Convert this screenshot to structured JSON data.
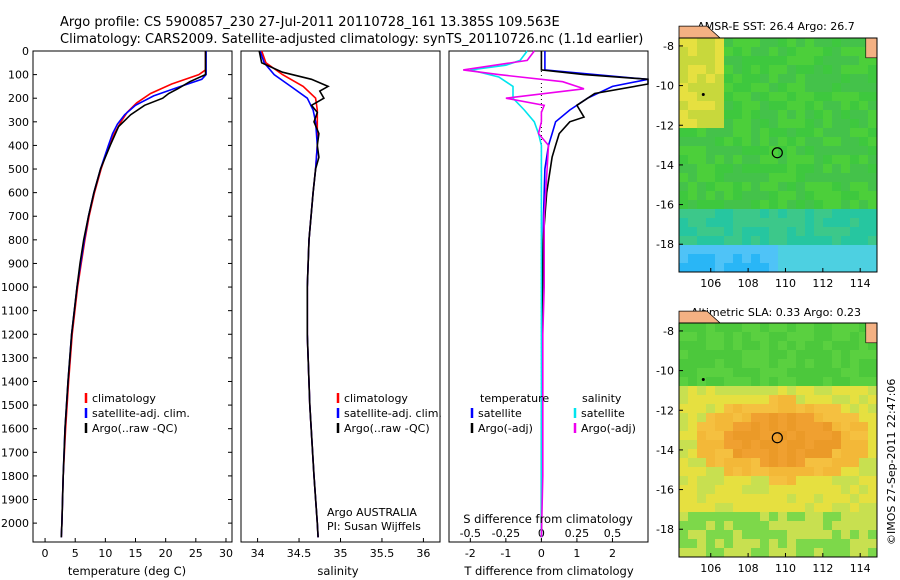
{
  "header": {
    "title_line1": "Argo profile: CS 5900857_230 27-Jul-2011 20110728_161 13.385S 109.563E",
    "title_line2": "Climatology: CARS2009. Satellite-adjusted climatology: synTS_20110726.nc (1.1d earlier)"
  },
  "credit": "©IMOS 27-Sep-2011 22:47:06",
  "colors": {
    "climatology": "#ff0000",
    "satellite": "#0000ff",
    "argo": "#000000",
    "salinity_satellite": "#00e5ee",
    "salinity_argo": "#ee00ee",
    "land": "#f4b183"
  },
  "chart_data": [
    {
      "type": "line",
      "name": "temperature-profile",
      "xlabel": "temperature (deg C)",
      "xlim": [
        -2,
        31
      ],
      "ylim": [
        2080,
        0
      ],
      "xticks": [
        0,
        5,
        10,
        15,
        20,
        25,
        30
      ],
      "yticks": [
        0,
        100,
        200,
        300,
        400,
        500,
        600,
        700,
        800,
        900,
        1000,
        1100,
        1200,
        1300,
        1400,
        1500,
        1600,
        1700,
        1800,
        1900,
        2000
      ],
      "legend": [
        "climatology",
        "satellite-adj. clim.",
        "Argo(..raw -QC)"
      ],
      "series": [
        {
          "name": "climatology",
          "color": "#ff0000",
          "depth": [
            0,
            80,
            100,
            140,
            180,
            220,
            260,
            300,
            350,
            400,
            500,
            600,
            700,
            800,
            900,
            1000,
            1200,
            1400,
            1600,
            1800,
            2000,
            2060
          ],
          "values": [
            26.6,
            26.6,
            25.5,
            21.0,
            17.5,
            15.2,
            13.6,
            12.6,
            11.5,
            10.6,
            9.3,
            8.2,
            7.3,
            6.6,
            6.0,
            5.4,
            4.5,
            3.9,
            3.4,
            3.0,
            2.8,
            2.7
          ]
        },
        {
          "name": "satellite-adj. clim.",
          "color": "#0000ff",
          "depth": [
            0,
            100,
            120,
            150,
            190,
            230,
            270,
            310,
            350,
            400,
            500,
            600,
            700,
            800,
            900,
            1000,
            1200,
            1400,
            1600,
            1800,
            2000,
            2060
          ],
          "values": [
            26.7,
            26.7,
            26.0,
            22.5,
            18.0,
            15.0,
            13.2,
            12.0,
            11.2,
            10.5,
            9.2,
            8.1,
            7.2,
            6.5,
            5.9,
            5.3,
            4.4,
            3.8,
            3.3,
            3.0,
            2.8,
            2.7
          ]
        },
        {
          "name": "Argo(..raw -QC)",
          "color": "#000000",
          "depth": [
            0,
            100,
            130,
            160,
            180,
            200,
            230,
            270,
            320,
            400,
            500,
            600,
            700,
            800,
            900,
            1000,
            1200,
            1400,
            1600,
            1800,
            2000,
            2060
          ],
          "values": [
            26.6,
            26.6,
            24.0,
            22.0,
            20.5,
            19.5,
            16.5,
            14.2,
            12.2,
            10.8,
            9.2,
            8.1,
            7.2,
            6.4,
            5.8,
            5.3,
            4.4,
            3.8,
            3.3,
            3.0,
            2.8,
            2.7
          ]
        }
      ]
    },
    {
      "type": "line",
      "name": "salinity-profile",
      "xlabel": "salinity",
      "xlim": [
        33.8,
        36.2
      ],
      "ylim": [
        2080,
        0
      ],
      "xticks": [
        34,
        34.5,
        35,
        35.5,
        36
      ],
      "xtick_labels": [
        "34",
        "34.5",
        "35",
        "35.5",
        "36"
      ],
      "legend": [
        "climatology",
        "satellite-adj. clim.",
        "Argo(..raw -QC)"
      ],
      "annotation_lines": [
        "Argo AUSTRALIA",
        "PI: Susan Wijffels"
      ],
      "series": [
        {
          "name": "climatology",
          "color": "#ff0000",
          "depth": [
            0,
            50,
            100,
            150,
            200,
            250,
            300,
            400,
            500,
            600,
            800,
            1000,
            1200,
            1500,
            1800,
            2000,
            2060
          ],
          "values": [
            34.05,
            34.1,
            34.3,
            34.55,
            34.7,
            34.72,
            34.72,
            34.72,
            34.7,
            34.67,
            34.62,
            34.6,
            34.6,
            34.63,
            34.68,
            34.72,
            34.73
          ]
        },
        {
          "name": "satellite-adj. clim.",
          "color": "#0000ff",
          "depth": [
            0,
            50,
            100,
            150,
            200,
            250,
            300,
            400,
            500,
            600,
            800,
            1000,
            1200,
            1500,
            1800,
            2000,
            2060
          ],
          "values": [
            34.03,
            34.08,
            34.2,
            34.4,
            34.6,
            34.67,
            34.7,
            34.72,
            34.7,
            34.67,
            34.62,
            34.6,
            34.6,
            34.63,
            34.68,
            34.72,
            34.73
          ]
        },
        {
          "name": "Argo(..raw -QC)",
          "color": "#000000",
          "depth": [
            0,
            50,
            90,
            120,
            150,
            170,
            200,
            230,
            260,
            300,
            350,
            400,
            450,
            500,
            600,
            800,
            1000,
            1200,
            1500,
            1800,
            2000,
            2060
          ],
          "values": [
            34.02,
            34.05,
            34.3,
            34.65,
            34.85,
            34.75,
            34.8,
            34.65,
            34.72,
            34.68,
            34.74,
            34.72,
            34.74,
            34.7,
            34.67,
            34.62,
            34.6,
            34.6,
            34.63,
            34.68,
            34.72,
            34.73
          ]
        }
      ]
    },
    {
      "type": "line",
      "name": "difference-profile",
      "xlabel": "T difference from climatology",
      "top_axis_label": "S difference from climatology",
      "xlim": [
        -2.6,
        3
      ],
      "ylim": [
        2080,
        0
      ],
      "xticks": [
        -2,
        -1,
        0,
        1,
        2
      ],
      "xtick_labels": [
        "-2",
        "-1",
        "0",
        "1",
        "2"
      ],
      "s_ticks": [
        -0.5,
        -0.25,
        0,
        0.25,
        0.5
      ],
      "s_tick_labels": [
        "-0.5",
        "-0.25",
        "0",
        "0.25",
        "0.5"
      ],
      "legend_left_title": "temperature",
      "legend_right_title": "salinity",
      "legend_left": [
        "satellite",
        "Argo(-adj)"
      ],
      "legend_right": [
        "satellite",
        "Argo(-adj)"
      ],
      "series": [
        {
          "name": "temperature satellite",
          "color": "#0000ff",
          "depth": [
            0,
            80,
            100,
            120,
            150,
            200,
            250,
            300,
            350,
            400,
            500,
            600,
            700,
            800,
            900,
            1000,
            1200,
            1500,
            1800,
            2060
          ],
          "values": [
            0.1,
            0.1,
            1.5,
            3.0,
            2.0,
            1.3,
            0.8,
            0.4,
            0.3,
            0.2,
            0.1,
            0.08,
            0.06,
            0.05,
            0.04,
            0.03,
            0.02,
            0.01,
            0.0,
            0.0
          ]
        },
        {
          "name": "temperature Argo(-adj)",
          "color": "#000000",
          "depth": [
            0,
            80,
            100,
            120,
            140,
            180,
            230,
            280,
            300,
            350,
            400,
            450,
            500,
            600,
            700,
            800,
            900,
            1000,
            1200,
            1500,
            1800,
            2060
          ],
          "values": [
            0.0,
            0.0,
            1.2,
            3.0,
            3.0,
            1.5,
            1.0,
            1.2,
            0.8,
            0.5,
            0.4,
            0.3,
            0.25,
            0.15,
            0.1,
            0.05,
            0.04,
            0.03,
            0.02,
            0.01,
            0.0,
            0.0
          ]
        },
        {
          "name": "salinity satellite",
          "color": "#00e5ee",
          "depth": [
            0,
            40,
            60,
            80,
            110,
            150,
            200,
            250,
            300,
            350,
            400,
            500,
            700,
            900,
            1200,
            1500,
            1800,
            2060
          ],
          "values": [
            -0.1,
            -0.15,
            -0.25,
            -0.5,
            -0.3,
            -0.2,
            -0.2,
            -0.12,
            -0.05,
            -0.02,
            0.0,
            0.0,
            0.0,
            0.0,
            0.0,
            0.0,
            0.0,
            0.0
          ]
        },
        {
          "name": "salinity Argo(-adj)",
          "color": "#ee00ee",
          "depth": [
            0,
            40,
            80,
            100,
            130,
            160,
            200,
            230,
            260,
            300,
            350,
            400,
            500,
            600,
            700,
            800,
            1000,
            1200,
            1500,
            1800,
            2060
          ],
          "values": [
            -0.05,
            -0.1,
            -0.55,
            -0.3,
            0.15,
            0.3,
            -0.25,
            0.02,
            0.0,
            0.0,
            -0.02,
            0.05,
            0.04,
            0.03,
            0.02,
            0.02,
            0.02,
            0.01,
            0.01,
            0.01,
            0.0
          ]
        }
      ]
    },
    {
      "type": "heatmap",
      "name": "sst-map",
      "title": "AMSR-E SST: 26.4 Argo: 26.7",
      "xlim": [
        104.3,
        114.9
      ],
      "ylim": [
        -19.4,
        -7.6
      ],
      "xticks": [
        106,
        108,
        110,
        112,
        114
      ],
      "yticks": [
        -8,
        -10,
        -12,
        -14,
        -16,
        -18
      ],
      "marker": {
        "lon": 109.563,
        "lat": -13.385
      }
    },
    {
      "type": "heatmap",
      "name": "sla-map",
      "title": "Altimetric SLA: 0.33 Argo: 0.23",
      "xlim": [
        104.3,
        114.9
      ],
      "ylim": [
        -19.4,
        -7.6
      ],
      "xticks": [
        106,
        108,
        110,
        112,
        114
      ],
      "yticks": [
        -8,
        -10,
        -12,
        -14,
        -16,
        -18
      ],
      "marker": {
        "lon": 109.563,
        "lat": -13.385
      }
    }
  ]
}
